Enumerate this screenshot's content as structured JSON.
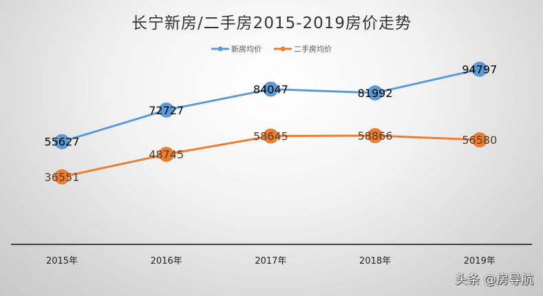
{
  "chart_data": {
    "type": "line",
    "title": "长宁新房/二手房2015-2019房价走势",
    "categories": [
      "2015年",
      "2016年",
      "2017年",
      "2018年",
      "2019年"
    ],
    "series": [
      {
        "name": "新房均价",
        "color": "#5b9bd5",
        "label_color": "#000000",
        "values": [
          55627,
          72727,
          84047,
          81992,
          94797
        ]
      },
      {
        "name": "二手房均价",
        "color": "#ed7d31",
        "label_color": "#5a3a22",
        "values": [
          36551,
          48745,
          58645,
          58866,
          56580
        ]
      }
    ],
    "xlabel": "",
    "ylabel": "",
    "ylim": [
      0,
      120000
    ],
    "grid": false,
    "legend": "top",
    "data_labels": true
  },
  "watermark": "头条 @房导航"
}
